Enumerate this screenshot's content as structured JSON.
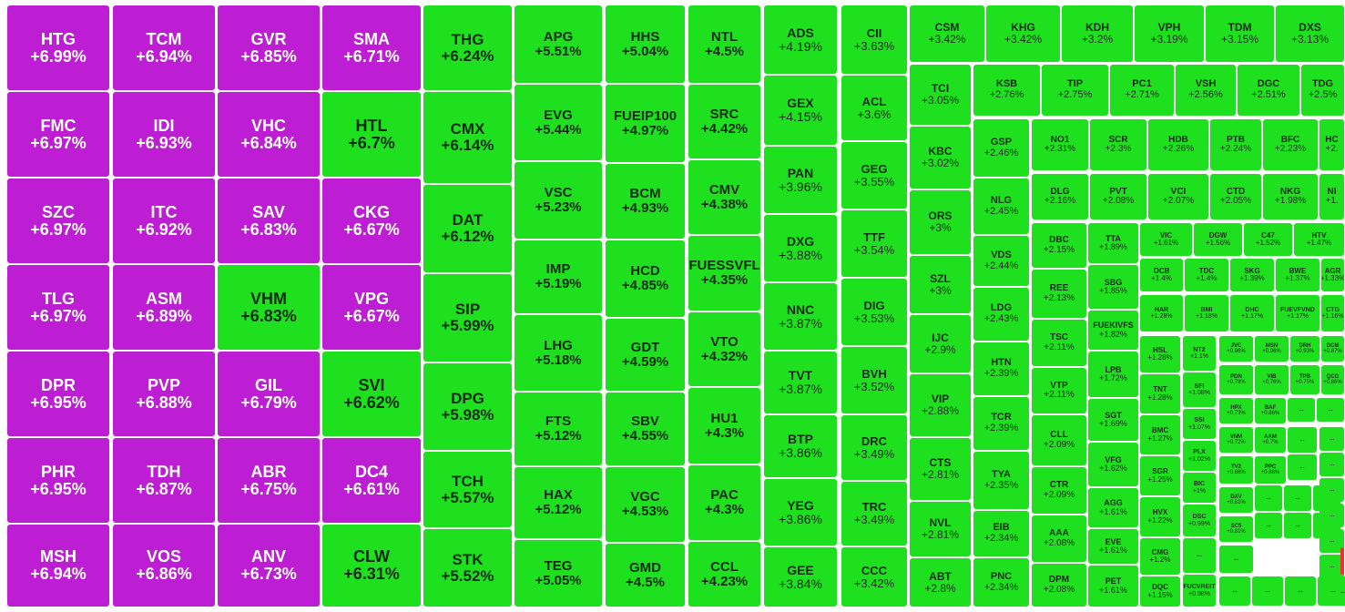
{
  "colors": {
    "ceiling": "#bd1ed4",
    "up": "#1ee01e",
    "down": "#e9342f",
    "text_up": "#0b2d0b"
  },
  "tiles": [
    {
      "s": "HTG",
      "p": "+6.99%",
      "c": "ceiling"
    },
    {
      "s": "TCM",
      "p": "+6.94%",
      "c": "ceiling"
    },
    {
      "s": "GVR",
      "p": "+6.85%",
      "c": "ceiling"
    },
    {
      "s": "SMA",
      "p": "+6.71%",
      "c": "ceiling"
    },
    {
      "s": "FMC",
      "p": "+6.97%",
      "c": "ceiling"
    },
    {
      "s": "IDI",
      "p": "+6.93%",
      "c": "ceiling"
    },
    {
      "s": "VHC",
      "p": "+6.84%",
      "c": "ceiling"
    },
    {
      "s": "HTL",
      "p": "+6.7%",
      "c": "up"
    },
    {
      "s": "SZC",
      "p": "+6.97%",
      "c": "ceiling"
    },
    {
      "s": "ITC",
      "p": "+6.92%",
      "c": "ceiling"
    },
    {
      "s": "SAV",
      "p": "+6.83%",
      "c": "ceiling"
    },
    {
      "s": "CKG",
      "p": "+6.67%",
      "c": "ceiling"
    },
    {
      "s": "TLG",
      "p": "+6.97%",
      "c": "ceiling"
    },
    {
      "s": "ASM",
      "p": "+6.89%",
      "c": "ceiling"
    },
    {
      "s": "VHM",
      "p": "+6.83%",
      "c": "up"
    },
    {
      "s": "VPG",
      "p": "+6.67%",
      "c": "ceiling"
    },
    {
      "s": "DPR",
      "p": "+6.95%",
      "c": "ceiling"
    },
    {
      "s": "PVP",
      "p": "+6.88%",
      "c": "ceiling"
    },
    {
      "s": "GIL",
      "p": "+6.79%",
      "c": "ceiling"
    },
    {
      "s": "SVI",
      "p": "+6.62%",
      "c": "up"
    },
    {
      "s": "PHR",
      "p": "+6.95%",
      "c": "ceiling"
    },
    {
      "s": "TDH",
      "p": "+6.87%",
      "c": "ceiling"
    },
    {
      "s": "ABR",
      "p": "+6.75%",
      "c": "ceiling"
    },
    {
      "s": "DC4",
      "p": "+6.61%",
      "c": "ceiling"
    },
    {
      "s": "MSH",
      "p": "+6.94%",
      "c": "ceiling"
    },
    {
      "s": "VOS",
      "p": "+6.86%",
      "c": "ceiling"
    },
    {
      "s": "ANV",
      "p": "+6.73%",
      "c": "ceiling"
    },
    {
      "s": "CLW",
      "p": "+6.31%",
      "c": "up"
    },
    {
      "s": "THG",
      "p": "+6.24%",
      "c": "up"
    },
    {
      "s": "CMX",
      "p": "+6.14%",
      "c": "up"
    },
    {
      "s": "DAT",
      "p": "+6.12%",
      "c": "up"
    },
    {
      "s": "SIP",
      "p": "+5.99%",
      "c": "up"
    },
    {
      "s": "DPG",
      "p": "+5.98%",
      "c": "up"
    },
    {
      "s": "TCH",
      "p": "+5.57%",
      "c": "up"
    },
    {
      "s": "STK",
      "p": "+5.52%",
      "c": "up"
    },
    {
      "s": "APG",
      "p": "+5.51%",
      "c": "up"
    },
    {
      "s": "EVG",
      "p": "+5.44%",
      "c": "up"
    },
    {
      "s": "VSC",
      "p": "+5.23%",
      "c": "up"
    },
    {
      "s": "IMP",
      "p": "+5.19%",
      "c": "up"
    },
    {
      "s": "LHG",
      "p": "+5.18%",
      "c": "up"
    },
    {
      "s": "FTS",
      "p": "+5.12%",
      "c": "up"
    },
    {
      "s": "HAX",
      "p": "+5.12%",
      "c": "up"
    },
    {
      "s": "TEG",
      "p": "+5.05%",
      "c": "up"
    },
    {
      "s": "HHS",
      "p": "+5.04%",
      "c": "up"
    },
    {
      "s": "FUEIP100",
      "p": "+4.97%",
      "c": "up"
    },
    {
      "s": "BCM",
      "p": "+4.93%",
      "c": "up"
    },
    {
      "s": "HCD",
      "p": "+4.85%",
      "c": "up"
    },
    {
      "s": "GDT",
      "p": "+4.59%",
      "c": "up"
    },
    {
      "s": "SBV",
      "p": "+4.55%",
      "c": "up"
    },
    {
      "s": "VGC",
      "p": "+4.53%",
      "c": "up"
    },
    {
      "s": "GMD",
      "p": "+4.5%",
      "c": "up"
    },
    {
      "s": "NTL",
      "p": "+4.5%",
      "c": "up"
    },
    {
      "s": "SRC",
      "p": "+4.42%",
      "c": "up"
    },
    {
      "s": "CMV",
      "p": "+4.38%",
      "c": "up"
    },
    {
      "s": "FUESSVFL",
      "p": "+4.35%",
      "c": "up"
    },
    {
      "s": "VTO",
      "p": "+4.32%",
      "c": "up"
    },
    {
      "s": "HU1",
      "p": "+4.3%",
      "c": "up"
    },
    {
      "s": "PAC",
      "p": "+4.3%",
      "c": "up"
    },
    {
      "s": "CCL",
      "p": "+4.23%",
      "c": "up"
    },
    {
      "s": "ADS",
      "p": "+4.19%",
      "c": "up"
    },
    {
      "s": "GEX",
      "p": "+4.15%",
      "c": "up"
    },
    {
      "s": "PAN",
      "p": "+3.96%",
      "c": "up"
    },
    {
      "s": "DXG",
      "p": "+3.88%",
      "c": "up"
    },
    {
      "s": "NNC",
      "p": "+3.87%",
      "c": "up"
    },
    {
      "s": "TVT",
      "p": "+3.87%",
      "c": "up"
    },
    {
      "s": "BTP",
      "p": "+3.86%",
      "c": "up"
    },
    {
      "s": "YEG",
      "p": "+3.86%",
      "c": "up"
    },
    {
      "s": "GEE",
      "p": "+3.84%",
      "c": "up"
    },
    {
      "s": "CII",
      "p": "+3.63%",
      "c": "up"
    },
    {
      "s": "ACL",
      "p": "+3.6%",
      "c": "up"
    },
    {
      "s": "GEG",
      "p": "+3.55%",
      "c": "up"
    },
    {
      "s": "TTF",
      "p": "+3.54%",
      "c": "up"
    },
    {
      "s": "DIG",
      "p": "+3.53%",
      "c": "up"
    },
    {
      "s": "BVH",
      "p": "+3.52%",
      "c": "up"
    },
    {
      "s": "DRC",
      "p": "+3.49%",
      "c": "up"
    },
    {
      "s": "TRC",
      "p": "+3.49%",
      "c": "up"
    },
    {
      "s": "CCC",
      "p": "+3.42%",
      "c": "up"
    },
    {
      "s": "CSM",
      "p": "+3.42%",
      "c": "up"
    },
    {
      "s": "KHG",
      "p": "+3.42%",
      "c": "up"
    },
    {
      "s": "KDH",
      "p": "+3.2%",
      "c": "up"
    },
    {
      "s": "VPH",
      "p": "+3.19%",
      "c": "up"
    },
    {
      "s": "TDM",
      "p": "+3.15%",
      "c": "up"
    },
    {
      "s": "DXS",
      "p": "+3.13%",
      "c": "up"
    },
    {
      "s": "TCI",
      "p": "+3.05%",
      "c": "up"
    },
    {
      "s": "KBC",
      "p": "+3.02%",
      "c": "up"
    },
    {
      "s": "ORS",
      "p": "+3%",
      "c": "up"
    },
    {
      "s": "SZL",
      "p": "+3%",
      "c": "up"
    },
    {
      "s": "IJC",
      "p": "+2.9%",
      "c": "up"
    },
    {
      "s": "VIP",
      "p": "+2.88%",
      "c": "up"
    },
    {
      "s": "CTS",
      "p": "+2.81%",
      "c": "up"
    },
    {
      "s": "NVL",
      "p": "+2.81%",
      "c": "up"
    },
    {
      "s": "ABT",
      "p": "+2.8%",
      "c": "up"
    },
    {
      "s": "KSB",
      "p": "+2.76%",
      "c": "up"
    },
    {
      "s": "TIP",
      "p": "+2.75%",
      "c": "up"
    },
    {
      "s": "PC1",
      "p": "+2.71%",
      "c": "up"
    },
    {
      "s": "VSH",
      "p": "+2.56%",
      "c": "up"
    },
    {
      "s": "DGC",
      "p": "+2.51%",
      "c": "up"
    },
    {
      "s": "TDG",
      "p": "+2.5%",
      "c": "up"
    },
    {
      "s": "GSP",
      "p": "+2.46%",
      "c": "up"
    },
    {
      "s": "NLG",
      "p": "+2.45%",
      "c": "up"
    },
    {
      "s": "VDS",
      "p": "+2.44%",
      "c": "up"
    },
    {
      "s": "LDG",
      "p": "+2.43%",
      "c": "up"
    },
    {
      "s": "HTN",
      "p": "+2.39%",
      "c": "up"
    },
    {
      "s": "TCR",
      "p": "+2.39%",
      "c": "up"
    },
    {
      "s": "TYA",
      "p": "+2.35%",
      "c": "up"
    },
    {
      "s": "EIB",
      "p": "+2.34%",
      "c": "up"
    },
    {
      "s": "PNC",
      "p": "+2.34%",
      "c": "up"
    },
    {
      "s": "NO1",
      "p": "+2.31%",
      "c": "up"
    },
    {
      "s": "SCR",
      "p": "+2.3%",
      "c": "up"
    },
    {
      "s": "HDB",
      "p": "+2.26%",
      "c": "up"
    },
    {
      "s": "PTB",
      "p": "+2.24%",
      "c": "up"
    },
    {
      "s": "BFC",
      "p": "+2.23%",
      "c": "up"
    },
    {
      "s": "HC",
      "p": "+2.",
      "c": "up"
    },
    {
      "s": "DLG",
      "p": "+2.16%",
      "c": "up"
    },
    {
      "s": "PVT",
      "p": "+2.08%",
      "c": "up"
    },
    {
      "s": "VCI",
      "p": "+2.07%",
      "c": "up"
    },
    {
      "s": "CTD",
      "p": "+2.05%",
      "c": "up"
    },
    {
      "s": "NKG",
      "p": "+1.98%",
      "c": "up"
    },
    {
      "s": "NI",
      "p": "+1.",
      "c": "up"
    },
    {
      "s": "DBC",
      "p": "+2.15%",
      "c": "up"
    },
    {
      "s": "REE",
      "p": "+2.13%",
      "c": "up"
    },
    {
      "s": "TSC",
      "p": "+2.11%",
      "c": "up"
    },
    {
      "s": "VTP",
      "p": "+2.11%",
      "c": "up"
    },
    {
      "s": "CLL",
      "p": "+2.09%",
      "c": "up"
    },
    {
      "s": "CTR",
      "p": "+2.09%",
      "c": "up"
    },
    {
      "s": "AAA",
      "p": "+2.08%",
      "c": "up"
    },
    {
      "s": "DPM",
      "p": "+2.08%",
      "c": "up"
    },
    {
      "s": "TTA",
      "p": "+1.89%",
      "c": "up"
    },
    {
      "s": "SBG",
      "p": "+1.85%",
      "c": "up"
    },
    {
      "s": "FUEKIVFS",
      "p": "+1.82%",
      "c": "up"
    },
    {
      "s": "LPB",
      "p": "+1.72%",
      "c": "up"
    },
    {
      "s": "SGT",
      "p": "+1.69%",
      "c": "up"
    },
    {
      "s": "VFG",
      "p": "+1.62%",
      "c": "up"
    },
    {
      "s": "AGG",
      "p": "+1.61%",
      "c": "up"
    },
    {
      "s": "EVE",
      "p": "+1.61%",
      "c": "up"
    },
    {
      "s": "PET",
      "p": "+1.61%",
      "c": "up"
    },
    {
      "s": "VIC",
      "p": "+1.61%",
      "c": "up"
    },
    {
      "s": "DGW",
      "p": "+1.56%",
      "c": "up"
    },
    {
      "s": "C47",
      "p": "+1.52%",
      "c": "up"
    },
    {
      "s": "HTV",
      "p": "+1.47%",
      "c": "up"
    },
    {
      "s": "OCB",
      "p": "+1.4%",
      "c": "up"
    },
    {
      "s": "TDC",
      "p": "+1.4%",
      "c": "up"
    },
    {
      "s": "SKG",
      "p": "+1.39%",
      "c": "up"
    },
    {
      "s": "BWE",
      "p": "+1.37%",
      "c": "up"
    },
    {
      "s": "AGR",
      "p": "+1.33%",
      "c": "up"
    },
    {
      "s": "HAR",
      "p": "+1.28%",
      "c": "up"
    },
    {
      "s": "BMI",
      "p": "+1.18%",
      "c": "up"
    },
    {
      "s": "DHC",
      "p": "+1.17%",
      "c": "up"
    },
    {
      "s": "FUEVFVND",
      "p": "+1.17%",
      "c": "up"
    },
    {
      "s": "CTG",
      "p": "+1.16%",
      "c": "up"
    },
    {
      "s": "HSL",
      "p": "+1.28%",
      "c": "up"
    },
    {
      "s": "TNT",
      "p": "+1.28%",
      "c": "up"
    },
    {
      "s": "BMC",
      "p": "+1.27%",
      "c": "up"
    },
    {
      "s": "SGR",
      "p": "+1.25%",
      "c": "up"
    },
    {
      "s": "HVX",
      "p": "+1.22%",
      "c": "up"
    },
    {
      "s": "CMG",
      "p": "+1.2%",
      "c": "up"
    },
    {
      "s": "DQC",
      "p": "+1.15%",
      "c": "up"
    },
    {
      "s": "NT2",
      "p": "+1.1%",
      "c": "up"
    },
    {
      "s": "SFI",
      "p": "+1.08%",
      "c": "up"
    },
    {
      "s": "SSI",
      "p": "+1.07%",
      "c": "up"
    },
    {
      "s": "PLX",
      "p": "+1.02%",
      "c": "up"
    },
    {
      "s": "BIC",
      "p": "+1%",
      "c": "up"
    },
    {
      "s": "DSC",
      "p": "+0.99%",
      "c": "up"
    },
    {
      "s": "...",
      "p": "",
      "c": "up"
    },
    {
      "s": "FUCVREIT",
      "p": "+0.98%",
      "c": "up"
    },
    {
      "s": "JVC",
      "p": "+0.96%",
      "c": "up"
    },
    {
      "s": "MSN",
      "p": "+0.96%",
      "c": "up"
    },
    {
      "s": "DRH",
      "p": "+0.93%",
      "c": "up"
    },
    {
      "s": "DCM",
      "p": "+0.87%",
      "c": "up"
    },
    {
      "s": "PDN",
      "p": "+0.78%",
      "c": "up"
    },
    {
      "s": "VIB",
      "p": "+0.76%",
      "c": "up"
    },
    {
      "s": "TPB",
      "p": "+0.75%",
      "c": "up"
    },
    {
      "s": "QCG",
      "p": "+0.86%",
      "c": "up"
    },
    {
      "s": "HPX",
      "p": "+0.73%",
      "c": "up"
    },
    {
      "s": "BAF",
      "p": "+0.86%",
      "c": "up"
    },
    {
      "s": "VNM",
      "p": "+0.72%",
      "c": "up"
    },
    {
      "s": "AAM",
      "p": "+0.7%",
      "c": "up"
    },
    {
      "s": "PPC",
      "p": "+0.86%",
      "c": "up"
    },
    {
      "s": "TV2",
      "p": "+0.86%",
      "c": "up"
    },
    {
      "s": "DXV",
      "p": "+0.81%",
      "c": "up"
    },
    {
      "s": "SC5",
      "p": "+0.81%",
      "c": "up"
    },
    {
      "s": "...",
      "p": "",
      "c": "up"
    },
    {
      "s": "...",
      "p": "",
      "c": "up"
    },
    {
      "s": "...",
      "p": "",
      "c": "up"
    },
    {
      "s": "...",
      "p": "",
      "c": "up"
    },
    {
      "s": "...",
      "p": "",
      "c": "up"
    },
    {
      "s": "...",
      "p": "",
      "c": "up"
    },
    {
      "s": "...",
      "p": "",
      "c": "up"
    },
    {
      "s": "...",
      "p": "",
      "c": "up"
    },
    {
      "s": "...",
      "p": "",
      "c": "up"
    },
    {
      "s": "...",
      "p": "",
      "c": "up"
    },
    {
      "s": "...",
      "p": "",
      "c": "up"
    },
    {
      "s": "...",
      "p": "",
      "c": "up"
    },
    {
      "s": "...",
      "p": "",
      "c": "up"
    },
    {
      "s": "...",
      "p": "",
      "c": "up"
    },
    {
      "s": "...",
      "p": "",
      "c": "up"
    },
    {
      "s": "...",
      "p": "",
      "c": "up"
    },
    {
      "s": "...",
      "p": "",
      "c": "up"
    },
    {
      "s": "...",
      "p": "",
      "c": "up"
    },
    {
      "s": "...",
      "p": "",
      "c": "up"
    },
    {
      "s": "...",
      "p": "",
      "c": "up"
    },
    {
      "s": "...",
      "p": "",
      "c": "up"
    },
    {
      "s": "...",
      "p": "",
      "c": "up"
    },
    {
      "s": "",
      "p": "",
      "c": "down"
    },
    {
      "s": "",
      "p": "",
      "c": "down"
    }
  ]
}
